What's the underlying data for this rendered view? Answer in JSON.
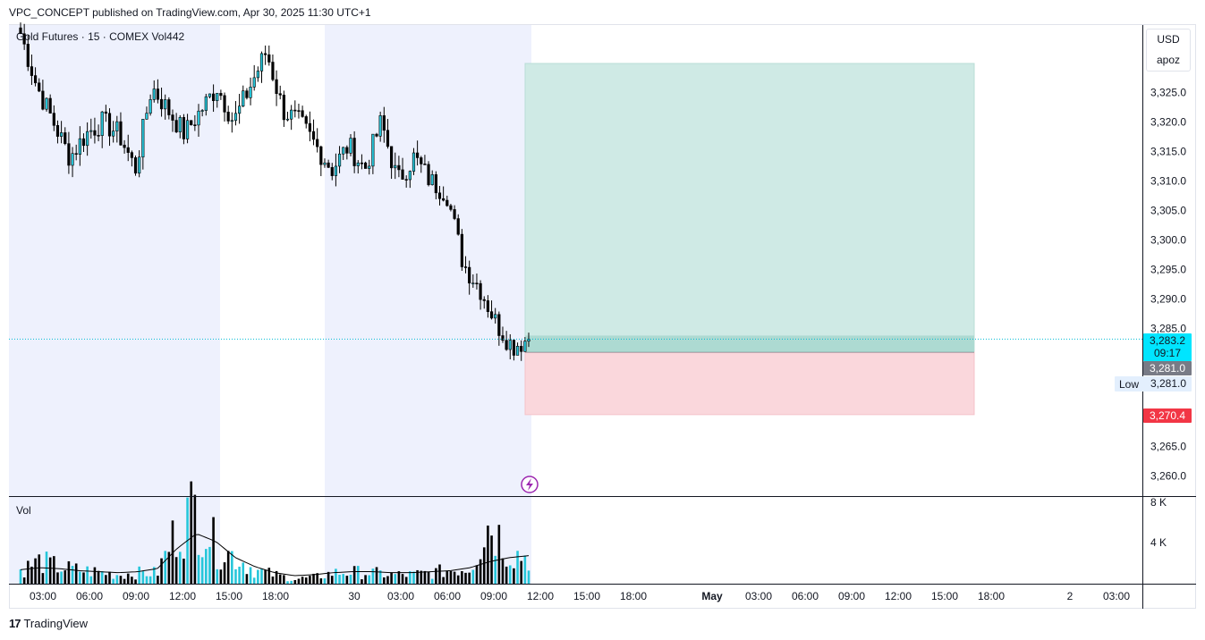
{
  "header": {
    "published_line": "VPC_CONCEPT published on TradingView.com, Apr 30, 2025 11:30 UTC+1"
  },
  "legend": {
    "symbol": "Gold Futures",
    "interval": "15",
    "exchange": "COMEX",
    "volume": "Vol442"
  },
  "currency_box": {
    "currency": "USD",
    "user": "apoz"
  },
  "volume_pane": {
    "label": "Vol",
    "axis_labels": [
      "8 K",
      "4 K"
    ]
  },
  "price_badges": {
    "last_price": "3,283.2",
    "countdown": "09:17",
    "entry": "3,281.0",
    "low_label": "Low",
    "low_value": "3,281.0",
    "stop": "3,270.4"
  },
  "footer": {
    "brand": "TradingView",
    "logo_glyph": "17"
  },
  "colors": {
    "up": "#26c6da",
    "down": "#000000",
    "session_shade": "#eef1fd",
    "target_zone": "#cfeae5",
    "stop_zone": "#fad7dc",
    "last_price_badge": "#00e5ff",
    "stop_badge": "#f23645",
    "entry_badge": "#787b86"
  },
  "chart_data": {
    "type": "candlestick",
    "title": "Gold Futures · 15 · COMEX",
    "price_axis": {
      "ticks": [
        3325,
        3320,
        3315,
        3310,
        3305,
        3300,
        3295,
        3290,
        3285,
        3265,
        3260
      ],
      "ylim": [
        3257.5,
        3334
      ]
    },
    "time_axis": {
      "ticks": [
        "03:00",
        "06:00",
        "09:00",
        "12:00",
        "15:00",
        "18:00",
        "30",
        "03:00",
        "06:00",
        "09:00",
        "12:00",
        "15:00",
        "18:00",
        "May",
        "03:00",
        "06:00",
        "09:00",
        "12:00",
        "15:00",
        "18:00",
        "2",
        "03:00"
      ]
    },
    "position": {
      "type": "long",
      "entry": 3281.0,
      "target": 3330.0,
      "stop": 3270.4
    },
    "last_price": 3283.2,
    "volume_ylim": [
      0,
      10000
    ],
    "ohlc_anchor_closes": [
      3335,
      3326,
      3320,
      3314,
      3318,
      3320,
      3318,
      3312,
      3326,
      3322,
      3318,
      3322,
      3326,
      3320,
      3326,
      3332,
      3322,
      3320,
      3316,
      3312,
      3316,
      3312,
      3320,
      3310,
      3314,
      3310,
      3308,
      3296,
      3292,
      3286,
      3282,
      3283.2
    ],
    "volume_anchors": [
      1500,
      2500,
      1800,
      1500,
      1300,
      1000,
      1200,
      1200,
      6000,
      8500,
      4000,
      3000,
      1500,
      1000,
      500,
      700,
      1200,
      1300,
      1200,
      1000,
      1000,
      1200,
      1500,
      1800,
      7000,
      3500,
      3000
    ],
    "volume_ma_anchors": [
      1400,
      1600,
      1500,
      1300,
      1200,
      1100,
      1200,
      1500,
      3500,
      5000,
      4200,
      2600,
      1700,
      1100,
      800,
      900,
      1100,
      1200,
      1200,
      1100,
      1100,
      1200,
      1300,
      1600,
      2200,
      2600,
      2800
    ]
  }
}
